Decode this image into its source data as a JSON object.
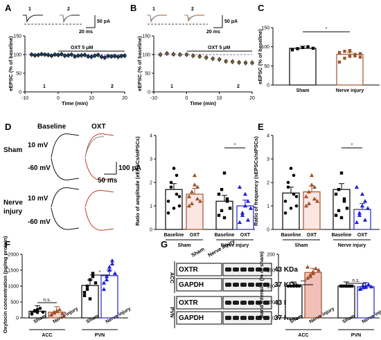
{
  "panel_letters": [
    "A",
    "B",
    "C",
    "D",
    "E",
    "F",
    "G"
  ],
  "colors": {
    "sham": "#111111",
    "injury_brown": "#a0522d",
    "injury_blue": "#1f1fd6",
    "oxt_fill": "#e8b0a8",
    "red": "#c0392b",
    "blue": "#1f1fd6"
  },
  "chart_data": [
    {
      "panel": "A",
      "type": "scatter",
      "ylabel": "eEPSC (% of baseline)",
      "xlabel": "Time (min)",
      "xlim": [
        -10,
        20
      ],
      "ylim": [
        0,
        150
      ],
      "xticks": [
        "-10",
        "0",
        "10",
        "20"
      ],
      "yticks": [
        "0",
        "50",
        "100",
        "150"
      ],
      "bar_label": "OXT 5 μM",
      "markers": [
        "1",
        "2"
      ],
      "scalebar": {
        "amp": "50 pA",
        "time": "20 ms"
      },
      "x": [
        -8,
        -7,
        -6,
        -5,
        -4,
        -3,
        -2,
        -1,
        0,
        1,
        2,
        3,
        4,
        5,
        6,
        7,
        8,
        9,
        10,
        11,
        12,
        13,
        14,
        15,
        16,
        17,
        18,
        19,
        20
      ],
      "y": [
        100,
        98,
        99,
        101,
        100,
        99,
        97,
        100,
        99,
        101,
        97,
        98,
        100,
        95,
        97,
        98,
        99,
        95,
        94,
        97,
        99,
        94,
        92,
        96,
        95,
        96,
        94,
        96,
        97
      ]
    },
    {
      "panel": "B",
      "type": "scatter",
      "ylabel": "eEPSC (% of baseline)",
      "xlabel": "Time (min)",
      "xlim": [
        -10,
        20
      ],
      "ylim": [
        0,
        150
      ],
      "xticks": [
        "-10",
        "0",
        "10",
        "20"
      ],
      "yticks": [
        "0",
        "50",
        "100",
        "150"
      ],
      "bar_label": "OXT 5 μM",
      "markers": [
        "1",
        "2"
      ],
      "scalebar": {
        "amp": "50 pA",
        "time": "20 ms"
      },
      "x": [
        -8,
        -6,
        -4,
        -2,
        0,
        2,
        4,
        6,
        8,
        10,
        12,
        14,
        16,
        18,
        20
      ],
      "y": [
        100,
        103,
        101,
        100,
        100,
        97,
        95,
        92,
        89,
        87,
        82,
        81,
        79,
        78,
        78
      ]
    },
    {
      "panel": "C",
      "type": "bar",
      "ylabel": "eEPSC (% of baseline)",
      "ylim": [
        0,
        150
      ],
      "yticks": [
        "0",
        "50",
        "100",
        "150"
      ],
      "categories": [
        "Sham",
        "Nerve injury"
      ],
      "values": [
        96,
        80
      ],
      "points": [
        [
          92,
          95,
          98,
          100,
          96
        ],
        [
          60,
          70,
          75,
          80,
          82,
          85,
          88,
          90,
          76,
          73
        ]
      ],
      "sig": "*"
    },
    {
      "panel": "D",
      "type": "bar",
      "ylabel": "Ratio of amplitude (eEPSCs/eIPSCs)",
      "ylim": [
        0,
        4
      ],
      "yticks": [
        "0",
        "1",
        "2",
        "3",
        "4"
      ],
      "categories": [
        "Baseline",
        "OXT",
        "Baseline",
        "OXT"
      ],
      "groups": [
        "Sham",
        "Nerve injury"
      ],
      "values": [
        1.7,
        1.5,
        1.2,
        1.0
      ],
      "sig": "*",
      "trace_labels": {
        "baseline": "Baseline",
        "oxt": "OXT",
        "sham": "Sham",
        "injury": "Nerve injury",
        "v1": "10 mV",
        "v2": "-60 mV",
        "amp": "100 pA",
        "time": "50 ms"
      }
    },
    {
      "panel": "E",
      "type": "bar",
      "ylabel": "Ratio of frequency (sEPSCs/sIPSCs)",
      "ylim": [
        0,
        4
      ],
      "yticks": [
        "0",
        "1",
        "2",
        "3",
        "4"
      ],
      "categories": [
        "Baseline",
        "OXT",
        "Baseline",
        "OXT"
      ],
      "groups": [
        "Sham",
        "Nerve injury"
      ],
      "values": [
        1.55,
        1.6,
        1.7,
        0.85
      ],
      "sig": "*"
    },
    {
      "panel": "F",
      "type": "bar",
      "ylabel": "Oxytocin concentration (pg/mg protein)",
      "ylim": [
        0,
        2000
      ],
      "yticks": [
        "0",
        "500",
        "1000",
        "1500",
        "2000"
      ],
      "categories": [
        "Sham",
        "Nerve injury",
        "Sham",
        "Nerve injury"
      ],
      "groups": [
        "ACC",
        "PVN"
      ],
      "values": [
        210,
        180,
        1020,
        1330
      ],
      "sig": [
        "n.s.",
        "*"
      ]
    },
    {
      "panel": "G",
      "type": "bar",
      "ylabel": "Band intensity (% of sham)",
      "ylim": [
        0,
        200
      ],
      "yticks": [
        "0",
        "50",
        "100",
        "150",
        "200"
      ],
      "categories": [
        "Sham",
        "Nerve injury",
        "Sham",
        "Nerve injury"
      ],
      "groups": [
        "ACC",
        "PVN"
      ],
      "values": [
        100,
        143,
        100,
        98
      ],
      "sig": [
        "***",
        "n.s."
      ],
      "blot": {
        "columns": [
          "Sham",
          "Nerve injury"
        ],
        "rows": [
          {
            "region": "ACC",
            "bands": [
              [
                "OXTR",
                "43 KDa"
              ],
              [
                "GAPDH",
                "37 KDa"
              ]
            ]
          },
          {
            "region": "PVN",
            "bands": [
              [
                "OXTR",
                "43 KDa"
              ],
              [
                "GAPDH",
                "37 KDa"
              ]
            ]
          }
        ]
      }
    }
  ]
}
